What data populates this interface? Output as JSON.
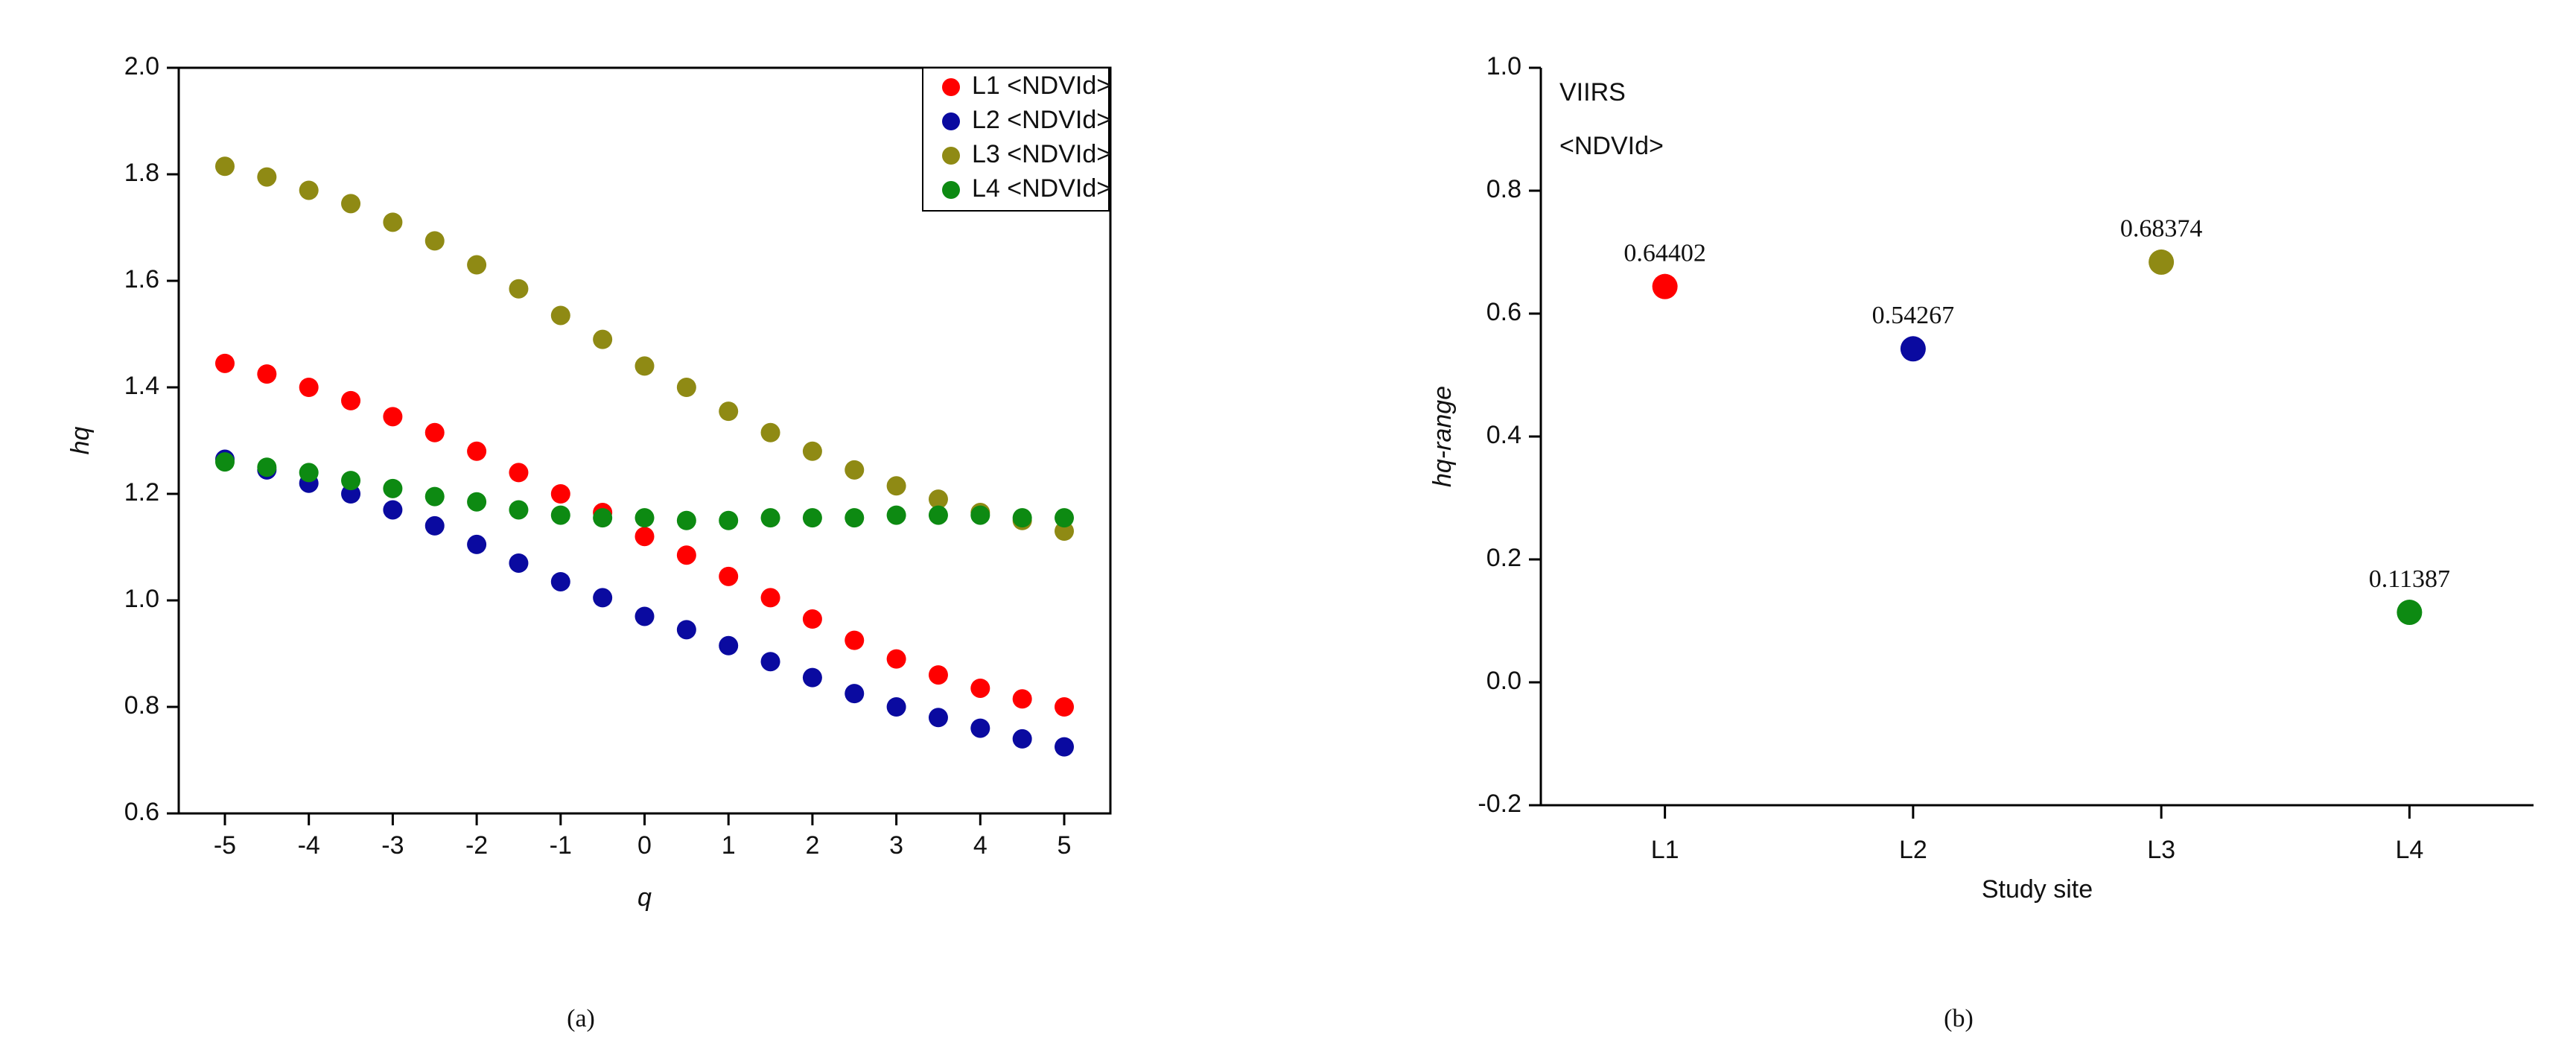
{
  "chart_data": [
    {
      "type": "scatter",
      "caption": "(a)",
      "x_label": "q",
      "y_label": "hq",
      "x": [
        -5,
        -4.5,
        -4,
        -3.5,
        -3,
        -2.5,
        -2,
        -1.5,
        -1,
        -0.5,
        0,
        0.5,
        1,
        1.5,
        2,
        2.5,
        3,
        3.5,
        4,
        4.5,
        5
      ],
      "series": [
        {
          "name": "L1 <NDVId>",
          "color": "#ff0000",
          "values": [
            1.445,
            1.425,
            1.4,
            1.375,
            1.345,
            1.315,
            1.28,
            1.24,
            1.2,
            1.165,
            1.12,
            1.085,
            1.045,
            1.005,
            0.965,
            0.925,
            0.89,
            0.86,
            0.835,
            0.815,
            0.8
          ]
        },
        {
          "name": "L2 <NDVId>",
          "color": "#0a0aa0",
          "values": [
            1.265,
            1.245,
            1.22,
            1.2,
            1.17,
            1.14,
            1.105,
            1.07,
            1.035,
            1.005,
            0.97,
            0.945,
            0.915,
            0.885,
            0.855,
            0.825,
            0.8,
            0.78,
            0.76,
            0.74,
            0.725
          ]
        },
        {
          "name": "L3 <NDVId>",
          "color": "#8f8a14",
          "values": [
            1.815,
            1.795,
            1.77,
            1.745,
            1.71,
            1.675,
            1.63,
            1.585,
            1.535,
            1.49,
            1.44,
            1.4,
            1.355,
            1.315,
            1.28,
            1.245,
            1.215,
            1.19,
            1.165,
            1.15,
            1.13
          ]
        },
        {
          "name": "L4 <NDVId>",
          "color": "#0d8a12",
          "values": [
            1.26,
            1.25,
            1.24,
            1.225,
            1.21,
            1.195,
            1.185,
            1.17,
            1.16,
            1.155,
            1.155,
            1.15,
            1.15,
            1.155,
            1.155,
            1.155,
            1.16,
            1.16,
            1.16,
            1.155,
            1.155
          ]
        }
      ],
      "xlim": [
        -5.55,
        5.55
      ],
      "xticks": [
        -5,
        -4,
        -3,
        -2,
        -1,
        0,
        1,
        2,
        3,
        4,
        5
      ],
      "ylim": [
        0.6,
        2.0
      ],
      "yticks": [
        0.6,
        0.8,
        {
          "value": 1.0,
          "label": "1.0"
        },
        1.2,
        1.4,
        1.6,
        1.8,
        {
          "value": 2.0,
          "label": "2.0"
        }
      ],
      "legend": "top-right"
    },
    {
      "type": "scatter",
      "caption": "(b)",
      "x_label": "Study site",
      "y_label": "hq-range",
      "annotation": [
        "VIIRS",
        "<NDVId>"
      ],
      "categories": [
        "L1",
        "L2",
        "L3",
        "L4"
      ],
      "values": [
        0.64402,
        0.54267,
        0.68374,
        0.11387
      ],
      "colors": [
        "#ff0000",
        "#0a0aa0",
        "#8f8a14",
        "#0d8a12"
      ],
      "ylim": [
        -0.2,
        1.0
      ],
      "yticks": [
        -0.2,
        {
          "value": 0.0,
          "label": "0.0"
        },
        0.2,
        0.4,
        0.6,
        0.8,
        {
          "value": 1.0,
          "label": "1.0"
        }
      ]
    }
  ]
}
